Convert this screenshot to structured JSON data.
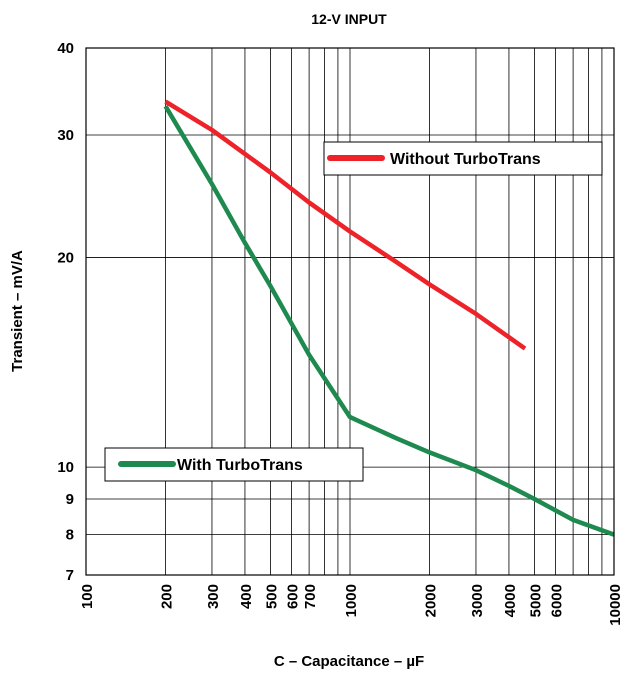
{
  "chart_data": {
    "type": "line",
    "title": "12-V INPUT",
    "xlabel": "C – Capacitance – µF",
    "ylabel": "Transient – mV/A",
    "x_scale": "log",
    "y_scale": "log",
    "xlim": [
      100,
      10000
    ],
    "ylim": [
      7,
      40
    ],
    "grid": true,
    "x_ticks": [
      100,
      200,
      300,
      400,
      500,
      600,
      700,
      800,
      900,
      1000,
      2000,
      3000,
      4000,
      5000,
      6000,
      7000,
      8000,
      9000,
      10000
    ],
    "x_tick_labels": [
      {
        "value": 100,
        "text": "100"
      },
      {
        "value": 200,
        "text": "200"
      },
      {
        "value": 300,
        "text": "300"
      },
      {
        "value": 400,
        "text": "400"
      },
      {
        "value": 500,
        "text": "500"
      },
      {
        "value": 600,
        "text": "600"
      },
      {
        "value": 700,
        "text": "700"
      },
      {
        "value": 1000,
        "text": "1000"
      },
      {
        "value": 2000,
        "text": "2000"
      },
      {
        "value": 3000,
        "text": "3000"
      },
      {
        "value": 4000,
        "text": "4000"
      },
      {
        "value": 5000,
        "text": "5000"
      },
      {
        "value": 6000,
        "text": "6000"
      },
      {
        "value": 10000,
        "text": "10000"
      }
    ],
    "y_ticks": [
      7,
      8,
      9,
      10,
      20,
      30,
      40
    ],
    "y_tick_labels": [
      {
        "value": 7,
        "text": "7"
      },
      {
        "value": 8,
        "text": "8"
      },
      {
        "value": 9,
        "text": "9"
      },
      {
        "value": 10,
        "text": "10"
      },
      {
        "value": 20,
        "text": "20"
      },
      {
        "value": 30,
        "text": "30"
      },
      {
        "value": 40,
        "text": "40"
      }
    ],
    "series": [
      {
        "name": "Without TurboTrans",
        "color": "#ee2229",
        "x": [
          200,
          300,
          500,
          700,
          1000,
          1500,
          2000,
          3000,
          4600
        ],
        "y": [
          33.5,
          30.5,
          26.5,
          24,
          21.8,
          19.7,
          18.3,
          16.6,
          14.8
        ]
      },
      {
        "name": "With TurboTrans",
        "color": "#1f8a4f",
        "x": [
          200,
          300,
          400,
          500,
          700,
          1000,
          1500,
          2000,
          3000,
          4000,
          5000,
          7000,
          10000
        ],
        "y": [
          33,
          25.5,
          21,
          18.2,
          14.5,
          11.8,
          11,
          10.5,
          9.9,
          9.4,
          9.0,
          8.4,
          8.0
        ]
      }
    ],
    "legend": [
      {
        "series": 0,
        "position": "upper-right"
      },
      {
        "series": 1,
        "position": "lower-left"
      }
    ]
  }
}
